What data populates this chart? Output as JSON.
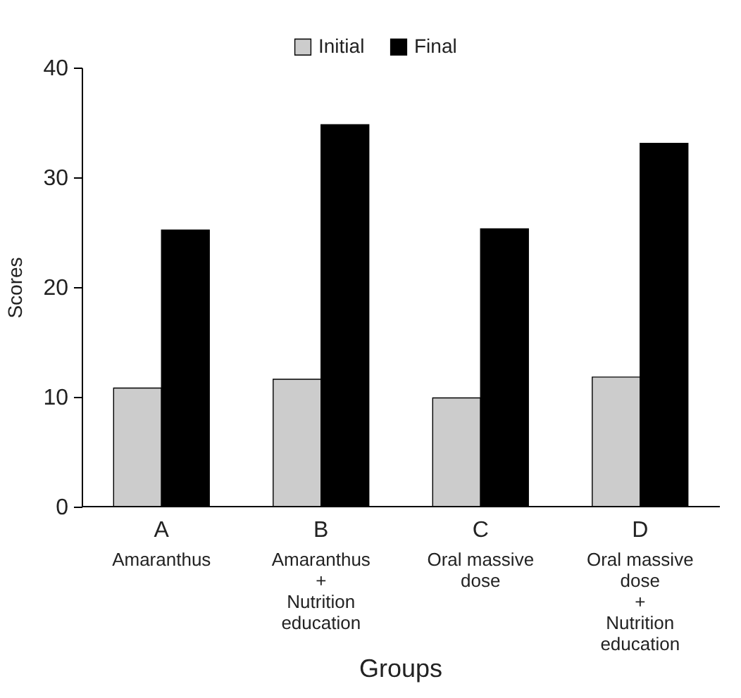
{
  "chart_data": {
    "type": "bar",
    "xlabel": "Groups",
    "ylabel": "Scores",
    "categories": [
      "A",
      "B",
      "C",
      "D"
    ],
    "annotations": [
      "Amaranthus",
      "Amaranthus\n+\nNutrition\neducation",
      "Oral massive\ndose",
      "Oral massive\ndose\n+\nNutrition\neducation"
    ],
    "series": [
      {
        "name": "Initial",
        "color": "#cccccc",
        "values": [
          10.8,
          11.6,
          9.9,
          11.8
        ]
      },
      {
        "name": "Final",
        "color": "#000000",
        "values": [
          25.2,
          34.8,
          25.3,
          33.1
        ]
      }
    ],
    "ylim": [
      0,
      40
    ],
    "yticks": [
      0,
      10,
      20,
      30,
      40
    ],
    "grid": false,
    "legend": "top"
  }
}
